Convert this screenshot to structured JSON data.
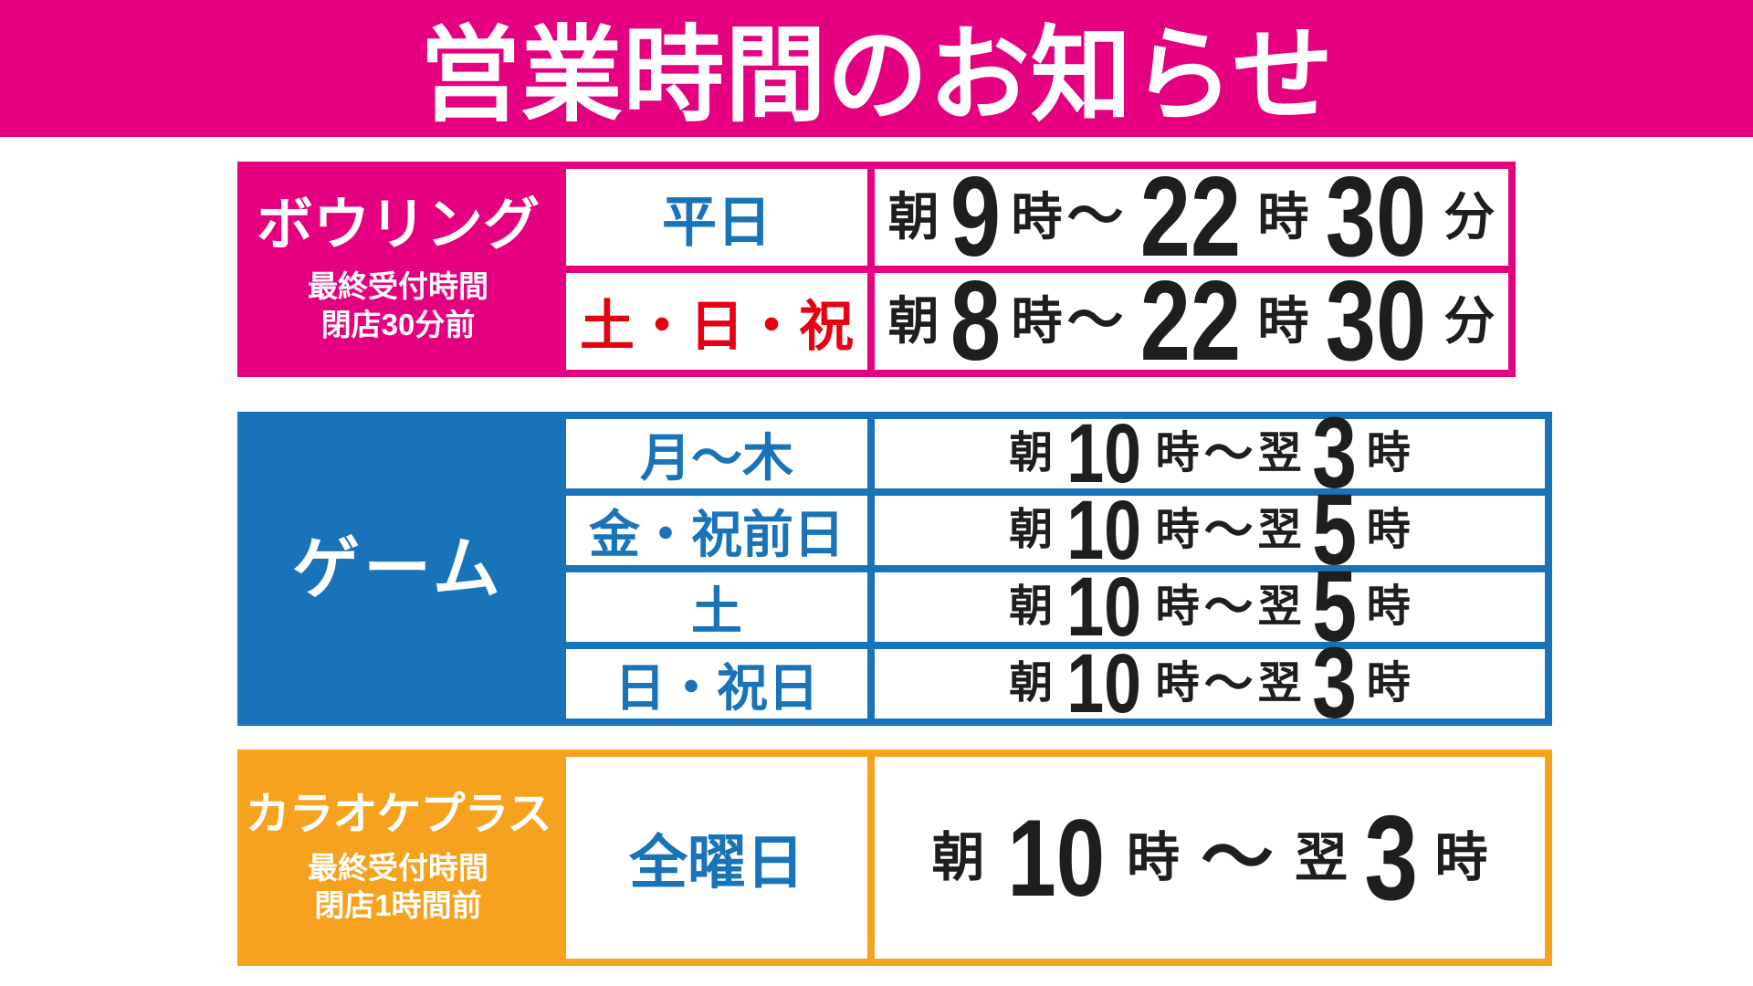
{
  "title": "営業時間のお知らせ",
  "colors": {
    "header_bg": "#e4007f",
    "day_blue": "#1973b9",
    "day_red": "#e60012",
    "time_black": "#1e1e1e",
    "white": "#ffffff"
  },
  "sections": [
    {
      "id": "bowling",
      "name": "ボウリング",
      "note_lines": [
        "最終受付時間",
        "閉店30分前"
      ],
      "color": "#e4007f",
      "rows": [
        {
          "day": "平日",
          "day_color": "blue",
          "time": "朝9時～22時30分"
        },
        {
          "day": "土・日・祝",
          "day_color": "red",
          "time": "朝8時～22時30分"
        }
      ]
    },
    {
      "id": "game",
      "name": "ゲーム",
      "note_lines": [],
      "color": "#1973b9",
      "rows": [
        {
          "day": "月～木",
          "day_color": "blue",
          "time": "朝10時～翌3時"
        },
        {
          "day": "金・祝前日",
          "day_color": "blue",
          "time": "朝10時～翌5時"
        },
        {
          "day": "土",
          "day_color": "blue",
          "time": "朝10時～翌5時"
        },
        {
          "day": "日・祝日",
          "day_color": "blue",
          "time": "朝10時～翌3時"
        }
      ]
    },
    {
      "id": "karaoke",
      "name": "カラオケプラス",
      "note_lines": [
        "最終受付時間",
        "閉店1時間前"
      ],
      "color": "#f6a21e",
      "rows": [
        {
          "day": "全曜日",
          "day_color": "blue",
          "time": "朝10時～翌3時"
        }
      ]
    }
  ]
}
